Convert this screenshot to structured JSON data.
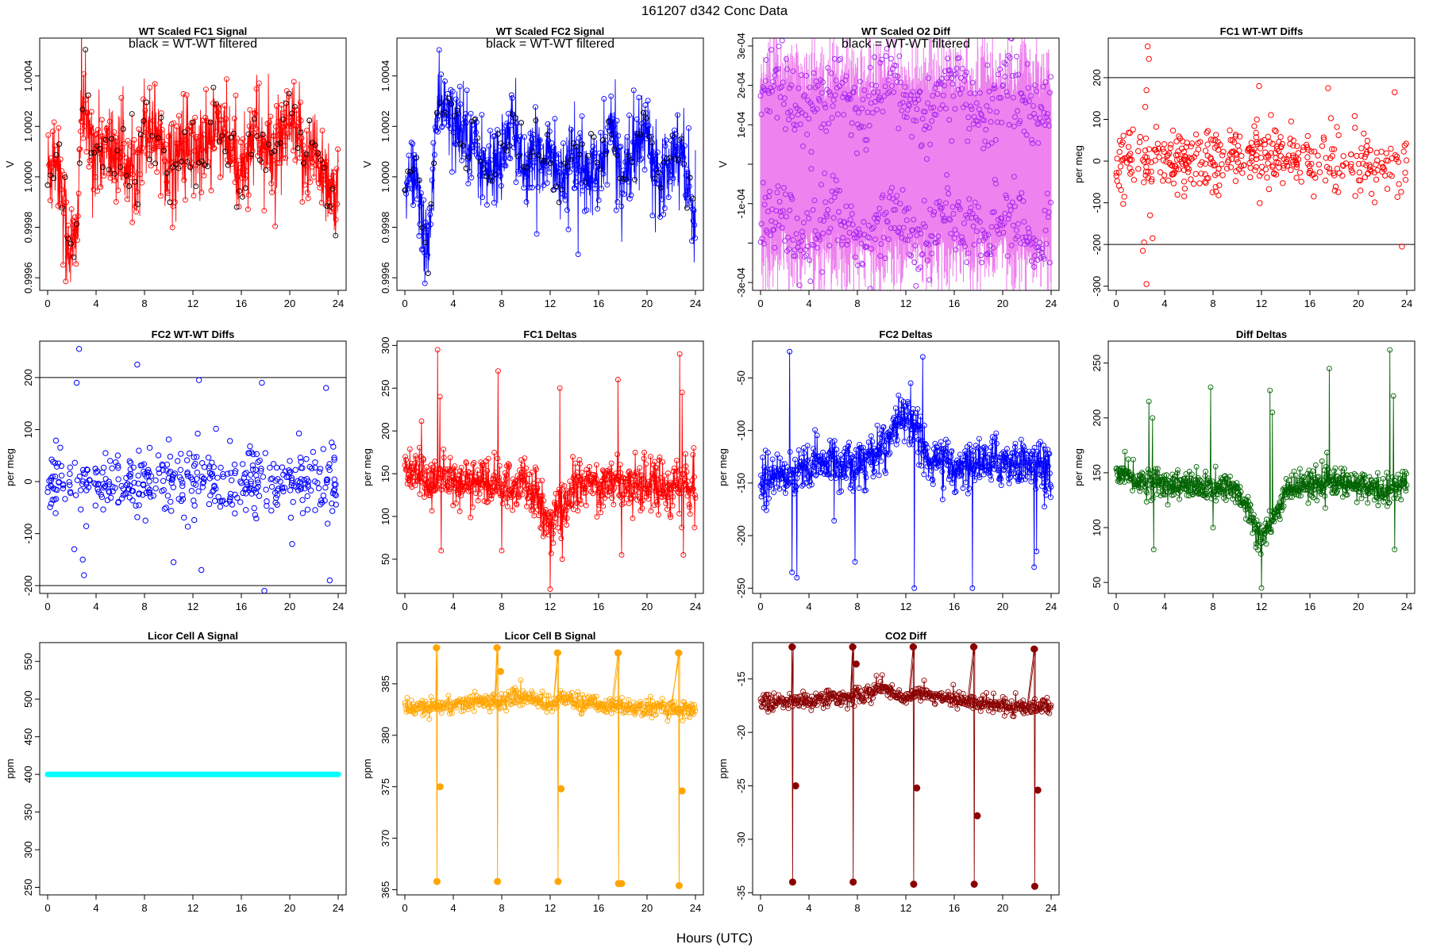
{
  "page": {
    "title": "161207    d342    Conc Data",
    "xlabel": "Hours (UTC)"
  },
  "chart_data": [
    {
      "id": "wt-fc1",
      "type": "line",
      "title": "WT Scaled FC1 Signal",
      "annotation": "black = WT-WT filtered",
      "ylabel": "V",
      "xlim": [
        0,
        24
      ],
      "ylim": [
        0.99955,
        1.00055
      ],
      "xticks": [
        0,
        4,
        8,
        12,
        16,
        20,
        24
      ],
      "yticks": [
        0.9996,
        0.9998,
        1.0,
        1.0002,
        1.0004
      ],
      "ytick_labels": [
        "0.9996",
        "0.9998",
        "1.0000",
        "1.0002",
        "1.0004"
      ],
      "grid": false,
      "color": "#ff0000",
      "overlay_color": "#000000",
      "style": "line-markers",
      "anchors": [
        [
          0,
          1.0
        ],
        [
          0.5,
          1.0001
        ],
        [
          1,
          1.00005
        ],
        [
          1.5,
          0.9998
        ],
        [
          2,
          0.9997
        ],
        [
          2.4,
          0.99975
        ],
        [
          2.8,
          1.0003
        ],
        [
          3.2,
          1.0002
        ],
        [
          4,
          1.0001
        ],
        [
          5,
          1.0001
        ],
        [
          6,
          1.0001
        ],
        [
          7,
          1.0
        ],
        [
          8,
          1.0002
        ],
        [
          9,
          1.0002
        ],
        [
          10,
          1.00005
        ],
        [
          11,
          1.0001
        ],
        [
          12,
          1.0001
        ],
        [
          13,
          1.0001
        ],
        [
          14,
          1.0002
        ],
        [
          15,
          1.0001
        ],
        [
          16,
          1.0
        ],
        [
          17,
          1.0002
        ],
        [
          18,
          1.0001
        ],
        [
          19,
          1.0001
        ],
        [
          20,
          1.0002
        ],
        [
          21,
          1.0001
        ],
        [
          22,
          1.0001
        ],
        [
          23,
          1.0
        ],
        [
          24,
          0.9999
        ]
      ],
      "noise": 0.00012,
      "n": 900
    },
    {
      "id": "wt-fc2",
      "type": "line",
      "title": "WT Scaled FC2 Signal",
      "annotation": "black = WT-WT filtered",
      "ylabel": "V",
      "xlim": [
        0,
        24
      ],
      "ylim": [
        0.99955,
        1.00055
      ],
      "xticks": [
        0,
        4,
        8,
        12,
        16,
        20,
        24
      ],
      "yticks": [
        0.9996,
        0.9998,
        1.0,
        1.0002,
        1.0004
      ],
      "ytick_labels": [
        "0.9996",
        "0.9998",
        "1.0000",
        "1.0002",
        "1.0004"
      ],
      "grid": false,
      "color": "#0000ff",
      "overlay_color": "#000000",
      "style": "line-markers",
      "anchors": [
        [
          0,
          0.9999
        ],
        [
          0.5,
          1.0
        ],
        [
          1,
          1.0
        ],
        [
          1.5,
          0.9998
        ],
        [
          2,
          0.9997
        ],
        [
          2.5,
          1.0002
        ],
        [
          3,
          1.0003
        ],
        [
          4,
          1.0002
        ],
        [
          5,
          1.0002
        ],
        [
          6,
          1.0001
        ],
        [
          7,
          1.0
        ],
        [
          8,
          1.0001
        ],
        [
          9,
          1.0002
        ],
        [
          10,
          1.0
        ],
        [
          11,
          1.0001
        ],
        [
          12,
          1.0001
        ],
        [
          13,
          1.0
        ],
        [
          14,
          1.0001
        ],
        [
          15,
          1.0
        ],
        [
          16,
          1.0
        ],
        [
          17,
          1.0002
        ],
        [
          18,
          1.0
        ],
        [
          19,
          1.0001
        ],
        [
          20,
          1.0002
        ],
        [
          21,
          1.0
        ],
        [
          22,
          1.0001
        ],
        [
          23,
          1.0001
        ],
        [
          24,
          0.9998
        ]
      ],
      "noise": 0.0001,
      "n": 900
    },
    {
      "id": "wt-o2diff",
      "type": "line",
      "title": "WT Scaled O2 Diff",
      "annotation": "black = WT-WT filtered",
      "ylabel": "V",
      "xlim": [
        0,
        24
      ],
      "ylim": [
        -0.00032,
        0.00032
      ],
      "xticks": [
        0,
        4,
        8,
        12,
        16,
        20,
        24
      ],
      "yticks": [
        -0.0003,
        -0.0001,
        0.0001,
        0.0003
      ],
      "ytick_labels": [
        "-3e-04",
        "-1e-04",
        "1e-04",
        "3e-04"
      ],
      "yticks_minor": [
        -0.0002,
        0.0,
        0.0002
      ],
      "ytick_labels_minor": [
        "",
        "",
        "2e-04"
      ],
      "grid": false,
      "color": "#ee82ee",
      "marker_color": "#a020f0",
      "style": "bands",
      "band": 0.00016,
      "noise": 5e-05,
      "n": 700
    },
    {
      "id": "fc1-wtwt",
      "type": "scatter",
      "title": "FC1 WT-WT Diffs",
      "ylabel": "per meg",
      "xlim": [
        0,
        24
      ],
      "ylim": [
        -310,
        295
      ],
      "xticks": [
        0,
        4,
        8,
        12,
        16,
        20,
        24
      ],
      "yticks": [
        -300,
        -200,
        -100,
        0,
        100,
        200
      ],
      "ytick_labels": [
        "-300",
        "-200",
        "-100",
        "0",
        "100",
        "200"
      ],
      "hlines": [
        200,
        -200
      ],
      "grid": false,
      "color": "#ff0000",
      "style": "points",
      "spread": 45,
      "n": 430,
      "outliers": [
        [
          2.6,
          275
        ],
        [
          2.7,
          245
        ],
        [
          2.4,
          130
        ],
        [
          2.3,
          -195
        ],
        [
          2.2,
          -215
        ],
        [
          2.5,
          -295
        ],
        [
          11.8,
          180
        ],
        [
          17.5,
          175
        ],
        [
          23.0,
          165
        ],
        [
          23.6,
          -205
        ],
        [
          3.0,
          -185
        ],
        [
          2.5,
          170
        ],
        [
          2.8,
          -130
        ]
      ]
    },
    {
      "id": "fc2-wtwt",
      "type": "scatter",
      "title": "FC2 WT-WT Diffs",
      "ylabel": "per meg",
      "xlim": [
        0,
        24
      ],
      "ylim": [
        -215,
        270
      ],
      "xticks": [
        0,
        4,
        8,
        12,
        16,
        20,
        24
      ],
      "yticks": [
        -200,
        -100,
        0,
        100,
        200
      ],
      "ytick_labels": [
        "-200",
        "-100",
        "0",
        "100",
        "200"
      ],
      "hlines": [
        200,
        -200
      ],
      "grid": false,
      "color": "#0000ff",
      "style": "points",
      "spread": 35,
      "n": 430,
      "outliers": [
        [
          2.6,
          255
        ],
        [
          7.4,
          225
        ],
        [
          2.4,
          190
        ],
        [
          12.5,
          195
        ],
        [
          17.7,
          190
        ],
        [
          23.0,
          180
        ],
        [
          10.4,
          -155
        ],
        [
          12.7,
          -170
        ],
        [
          3.0,
          -180
        ],
        [
          17.9,
          -210
        ],
        [
          23.3,
          -190
        ],
        [
          20.2,
          -120
        ],
        [
          2.2,
          -130
        ],
        [
          2.9,
          -150
        ]
      ]
    },
    {
      "id": "fc1-deltas",
      "type": "line",
      "title": "FC1 Deltas",
      "ylabel": "per meg",
      "xlim": [
        0,
        24
      ],
      "ylim": [
        10,
        305
      ],
      "xticks": [
        0,
        4,
        8,
        12,
        16,
        20,
        24
      ],
      "yticks": [
        50,
        100,
        150,
        200,
        250,
        300
      ],
      "ytick_labels": [
        "50",
        "100",
        "150",
        "200",
        "250",
        "300"
      ],
      "grid": false,
      "color": "#ff0000",
      "style": "line-markers",
      "anchors": [
        [
          0,
          150
        ],
        [
          2,
          145
        ],
        [
          4,
          140
        ],
        [
          6,
          140
        ],
        [
          8,
          135
        ],
        [
          10,
          135
        ],
        [
          11,
          120
        ],
        [
          12,
          85
        ],
        [
          13,
          110
        ],
        [
          14,
          135
        ],
        [
          16,
          140
        ],
        [
          18,
          140
        ],
        [
          20,
          138
        ],
        [
          22,
          135
        ],
        [
          24,
          135
        ]
      ],
      "noise": 18,
      "n": 700,
      "spikes": [
        [
          2.7,
          295
        ],
        [
          2.9,
          240
        ],
        [
          7.7,
          270
        ],
        [
          12.8,
          250
        ],
        [
          17.6,
          260
        ],
        [
          22.7,
          290
        ],
        [
          22.9,
          245
        ],
        [
          12.0,
          15
        ],
        [
          3.0,
          60
        ],
        [
          8.0,
          60
        ],
        [
          13.0,
          50
        ],
        [
          17.9,
          55
        ],
        [
          23.0,
          55
        ]
      ]
    },
    {
      "id": "fc2-deltas",
      "type": "line",
      "title": "FC2 Deltas",
      "ylabel": "per meg",
      "xlim": [
        0,
        24
      ],
      "ylim": [
        -255,
        -15
      ],
      "xticks": [
        0,
        4,
        8,
        12,
        16,
        20,
        24
      ],
      "yticks": [
        -250,
        -200,
        -150,
        -100,
        -50
      ],
      "ytick_labels": [
        "-250",
        "-200",
        "-150",
        "-100",
        "-50"
      ],
      "grid": false,
      "color": "#0000ff",
      "style": "line-markers",
      "anchors": [
        [
          0,
          -150
        ],
        [
          2,
          -140
        ],
        [
          4,
          -135
        ],
        [
          6,
          -130
        ],
        [
          8,
          -130
        ],
        [
          10,
          -120
        ],
        [
          11,
          -100
        ],
        [
          12,
          -80
        ],
        [
          13,
          -100
        ],
        [
          14,
          -130
        ],
        [
          16,
          -135
        ],
        [
          18,
          -130
        ],
        [
          20,
          -130
        ],
        [
          22,
          -130
        ],
        [
          24,
          -140
        ]
      ],
      "noise": 14,
      "n": 700,
      "spikes": [
        [
          2.4,
          -25
        ],
        [
          2.6,
          -235
        ],
        [
          3.0,
          -240
        ],
        [
          7.8,
          -225
        ],
        [
          12.7,
          -250
        ],
        [
          13.4,
          -30
        ],
        [
          17.5,
          -250
        ],
        [
          22.6,
          -230
        ],
        [
          22.8,
          -215
        ],
        [
          12.4,
          -55
        ]
      ]
    },
    {
      "id": "diff-deltas",
      "type": "line",
      "title": "Diff Deltas",
      "ylabel": "per meg",
      "xlim": [
        0,
        24
      ],
      "ylim": [
        40,
        270
      ],
      "xticks": [
        0,
        4,
        8,
        12,
        16,
        20,
        24
      ],
      "yticks": [
        50,
        100,
        150,
        200,
        250
      ],
      "ytick_labels": [
        "50",
        "100",
        "150",
        "200",
        "250"
      ],
      "grid": false,
      "color": "#006400",
      "style": "line-markers",
      "anchors": [
        [
          0,
          150
        ],
        [
          2,
          142
        ],
        [
          4,
          140
        ],
        [
          6,
          138
        ],
        [
          8,
          135
        ],
        [
          10,
          135
        ],
        [
          11,
          115
        ],
        [
          12,
          90
        ],
        [
          13,
          105
        ],
        [
          14,
          135
        ],
        [
          16,
          140
        ],
        [
          18,
          140
        ],
        [
          20,
          138
        ],
        [
          22,
          135
        ],
        [
          24,
          140
        ]
      ],
      "noise": 8,
      "n": 700,
      "spikes": [
        [
          2.7,
          215
        ],
        [
          3.0,
          200
        ],
        [
          7.8,
          228
        ],
        [
          12.7,
          225
        ],
        [
          12.9,
          205
        ],
        [
          17.6,
          245
        ],
        [
          22.6,
          262
        ],
        [
          22.9,
          220
        ],
        [
          12.0,
          45
        ],
        [
          3.1,
          80
        ],
        [
          23.0,
          80
        ],
        [
          8.0,
          100
        ]
      ]
    },
    {
      "id": "licor-a",
      "type": "line",
      "title": "Licor Cell A Signal",
      "ylabel": "ppm",
      "xlim": [
        0,
        24
      ],
      "ylim": [
        240,
        575
      ],
      "xticks": [
        0,
        4,
        8,
        12,
        16,
        20,
        24
      ],
      "yticks": [
        250,
        300,
        350,
        400,
        450,
        500,
        550
      ],
      "ytick_labels": [
        "250",
        "300",
        "350",
        "400",
        "450",
        "500",
        "550"
      ],
      "grid": false,
      "color": "#00ffff",
      "style": "flat",
      "constant": 400
    },
    {
      "id": "licor-b",
      "type": "line",
      "title": "Licor Cell B Signal",
      "ylabel": "ppm",
      "xlim": [
        0,
        24
      ],
      "ylim": [
        364.5,
        389
      ],
      "xticks": [
        0,
        4,
        8,
        12,
        16,
        20,
        24
      ],
      "yticks": [
        365,
        370,
        375,
        380,
        385
      ],
      "ytick_labels": [
        "365",
        "370",
        "375",
        "380",
        "385"
      ],
      "grid": false,
      "color": "#ffa500",
      "style": "line-markers",
      "anchors": [
        [
          0,
          382.8
        ],
        [
          2,
          382.8
        ],
        [
          4,
          383.0
        ],
        [
          6,
          383.2
        ],
        [
          8,
          383.4
        ],
        [
          10,
          383.8
        ],
        [
          11,
          383.4
        ],
        [
          12,
          382.8
        ],
        [
          13,
          383.8
        ],
        [
          14,
          383.2
        ],
        [
          16,
          383.0
        ],
        [
          18,
          382.8
        ],
        [
          20,
          382.6
        ],
        [
          22,
          382.6
        ],
        [
          24,
          382.5
        ]
      ],
      "noise": 0.5,
      "n": 500,
      "calib": [
        [
          2.6,
          388.5,
          365.8
        ],
        [
          7.6,
          388.5,
          365.8
        ],
        [
          12.6,
          388.0,
          365.8
        ],
        [
          17.6,
          388.0,
          365.6
        ],
        [
          22.6,
          388.0,
          365.4
        ]
      ],
      "calib_mid": [
        [
          2.9,
          375.0
        ],
        [
          7.9,
          386.2
        ],
        [
          12.9,
          374.8
        ],
        [
          17.9,
          365.6
        ],
        [
          22.9,
          374.6
        ]
      ]
    },
    {
      "id": "co2-diff",
      "type": "line",
      "title": "CO2 Diff",
      "ylabel": "ppm",
      "xlim": [
        0,
        24
      ],
      "ylim": [
        -35.2,
        -11.6
      ],
      "xticks": [
        0,
        4,
        8,
        12,
        16,
        20,
        24
      ],
      "yticks": [
        -35,
        -30,
        -25,
        -20,
        -15
      ],
      "ytick_labels": [
        "-35",
        "-30",
        "-25",
        "-20",
        "-15"
      ],
      "grid": false,
      "color": "#8b0000",
      "style": "line-markers",
      "anchors": [
        [
          0,
          -17.2
        ],
        [
          2,
          -17.2
        ],
        [
          4,
          -17.0
        ],
        [
          6,
          -16.8
        ],
        [
          8,
          -16.6
        ],
        [
          10,
          -15.8
        ],
        [
          11,
          -16.2
        ],
        [
          12,
          -17.0
        ],
        [
          13,
          -16.0
        ],
        [
          14,
          -16.5
        ],
        [
          16,
          -17.0
        ],
        [
          18,
          -17.2
        ],
        [
          20,
          -17.4
        ],
        [
          22,
          -17.6
        ],
        [
          24,
          -17.4
        ]
      ],
      "noise": 0.5,
      "n": 500,
      "calib": [
        [
          2.6,
          -12.0,
          -34.0
        ],
        [
          7.6,
          -12.0,
          -34.0
        ],
        [
          12.6,
          -12.0,
          -34.2
        ],
        [
          17.6,
          -12.0,
          -34.2
        ],
        [
          22.6,
          -12.2,
          -34.4
        ]
      ],
      "calib_mid": [
        [
          2.9,
          -25.0
        ],
        [
          7.9,
          -13.6
        ],
        [
          12.9,
          -25.2
        ],
        [
          17.9,
          -27.8
        ],
        [
          22.9,
          -25.4
        ]
      ]
    }
  ]
}
